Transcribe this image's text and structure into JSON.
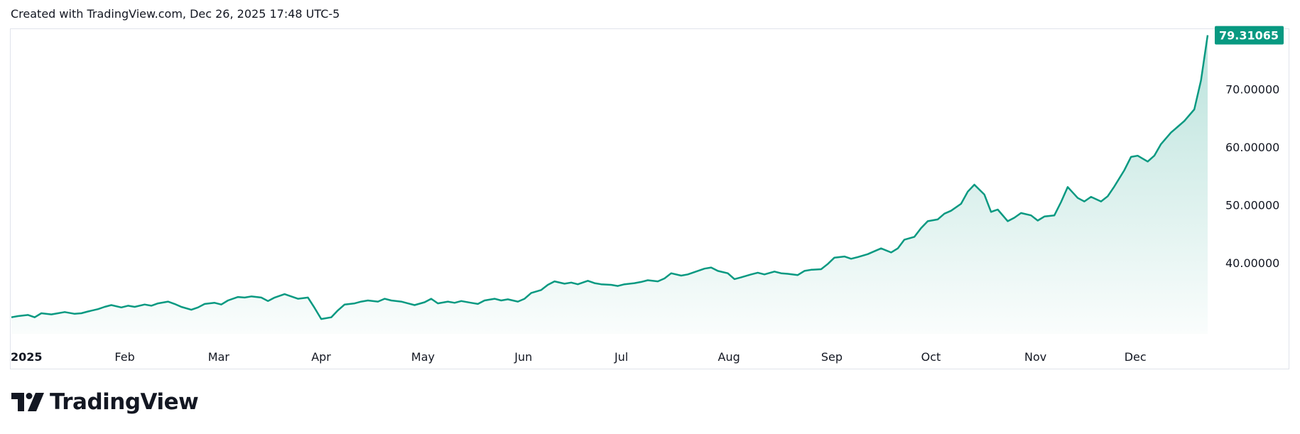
{
  "header": {
    "text": "Created with TradingView.com, Dec 26, 2025 17:48 UTC-5"
  },
  "footer": {
    "brand": "TradingView"
  },
  "colors": {
    "line": "#089981",
    "area_top": "#089981",
    "grid": "#e0e3eb",
    "badge_text": "#ffffff"
  },
  "chart_data": {
    "type": "area",
    "x_start": "2025-01-01",
    "x_end": "2025-12-26",
    "x_tick_labels": [
      "2025",
      "Feb",
      "Mar",
      "Apr",
      "May",
      "Jun",
      "Jul",
      "Aug",
      "Sep",
      "Oct",
      "Nov",
      "Dec"
    ],
    "y_tick_labels": [
      "40.00000",
      "50.00000",
      "60.00000",
      "70.00000"
    ],
    "ylim": [
      27,
      80
    ],
    "last_value_label": "79.31065",
    "grid": false,
    "points": [
      [
        "2025-01-01",
        30.6
      ],
      [
        "2025-01-03",
        30.8
      ],
      [
        "2025-01-06",
        31.0
      ],
      [
        "2025-01-08",
        30.6
      ],
      [
        "2025-01-10",
        31.3
      ],
      [
        "2025-01-13",
        31.1
      ],
      [
        "2025-01-15",
        31.3
      ],
      [
        "2025-01-17",
        31.5
      ],
      [
        "2025-01-20",
        31.2
      ],
      [
        "2025-01-22",
        31.3
      ],
      [
        "2025-01-24",
        31.6
      ],
      [
        "2025-01-27",
        32.0
      ],
      [
        "2025-01-29",
        32.4
      ],
      [
        "2025-01-31",
        32.7
      ],
      [
        "2025-02-03",
        32.3
      ],
      [
        "2025-02-05",
        32.6
      ],
      [
        "2025-02-07",
        32.4
      ],
      [
        "2025-02-10",
        32.8
      ],
      [
        "2025-02-12",
        32.6
      ],
      [
        "2025-02-14",
        33.0
      ],
      [
        "2025-02-17",
        33.3
      ],
      [
        "2025-02-19",
        32.9
      ],
      [
        "2025-02-21",
        32.4
      ],
      [
        "2025-02-24",
        31.9
      ],
      [
        "2025-02-26",
        32.3
      ],
      [
        "2025-02-28",
        32.9
      ],
      [
        "2025-03-03",
        33.1
      ],
      [
        "2025-03-05",
        32.8
      ],
      [
        "2025-03-07",
        33.5
      ],
      [
        "2025-03-10",
        34.1
      ],
      [
        "2025-03-12",
        34.0
      ],
      [
        "2025-03-14",
        34.2
      ],
      [
        "2025-03-17",
        34.0
      ],
      [
        "2025-03-19",
        33.4
      ],
      [
        "2025-03-21",
        34.0
      ],
      [
        "2025-03-24",
        34.6
      ],
      [
        "2025-03-26",
        34.2
      ],
      [
        "2025-03-28",
        33.8
      ],
      [
        "2025-03-31",
        34.0
      ],
      [
        "2025-04-02",
        32.2
      ],
      [
        "2025-04-04",
        30.3
      ],
      [
        "2025-04-07",
        30.6
      ],
      [
        "2025-04-09",
        31.8
      ],
      [
        "2025-04-11",
        32.8
      ],
      [
        "2025-04-14",
        33.0
      ],
      [
        "2025-04-16",
        33.3
      ],
      [
        "2025-04-18",
        33.5
      ],
      [
        "2025-04-21",
        33.3
      ],
      [
        "2025-04-23",
        33.8
      ],
      [
        "2025-04-25",
        33.5
      ],
      [
        "2025-04-28",
        33.3
      ],
      [
        "2025-04-30",
        33.0
      ],
      [
        "2025-05-02",
        32.7
      ],
      [
        "2025-05-05",
        33.2
      ],
      [
        "2025-05-07",
        33.8
      ],
      [
        "2025-05-09",
        33.0
      ],
      [
        "2025-05-12",
        33.3
      ],
      [
        "2025-05-14",
        33.1
      ],
      [
        "2025-05-16",
        33.4
      ],
      [
        "2025-05-19",
        33.1
      ],
      [
        "2025-05-21",
        32.9
      ],
      [
        "2025-05-23",
        33.5
      ],
      [
        "2025-05-26",
        33.8
      ],
      [
        "2025-05-28",
        33.5
      ],
      [
        "2025-05-30",
        33.7
      ],
      [
        "2025-06-02",
        33.3
      ],
      [
        "2025-06-04",
        33.8
      ],
      [
        "2025-06-06",
        34.8
      ],
      [
        "2025-06-09",
        35.3
      ],
      [
        "2025-06-11",
        36.2
      ],
      [
        "2025-06-13",
        36.8
      ],
      [
        "2025-06-16",
        36.4
      ],
      [
        "2025-06-18",
        36.6
      ],
      [
        "2025-06-20",
        36.3
      ],
      [
        "2025-06-23",
        36.9
      ],
      [
        "2025-06-25",
        36.5
      ],
      [
        "2025-06-27",
        36.3
      ],
      [
        "2025-06-30",
        36.2
      ],
      [
        "2025-07-02",
        36.0
      ],
      [
        "2025-07-04",
        36.3
      ],
      [
        "2025-07-07",
        36.5
      ],
      [
        "2025-07-09",
        36.7
      ],
      [
        "2025-07-11",
        37.0
      ],
      [
        "2025-07-14",
        36.8
      ],
      [
        "2025-07-16",
        37.3
      ],
      [
        "2025-07-18",
        38.2
      ],
      [
        "2025-07-21",
        37.8
      ],
      [
        "2025-07-23",
        38.0
      ],
      [
        "2025-07-25",
        38.4
      ],
      [
        "2025-07-28",
        39.0
      ],
      [
        "2025-07-30",
        39.2
      ],
      [
        "2025-08-01",
        38.6
      ],
      [
        "2025-08-04",
        38.2
      ],
      [
        "2025-08-06",
        37.2
      ],
      [
        "2025-08-08",
        37.5
      ],
      [
        "2025-08-11",
        38.0
      ],
      [
        "2025-08-13",
        38.3
      ],
      [
        "2025-08-15",
        38.0
      ],
      [
        "2025-08-18",
        38.5
      ],
      [
        "2025-08-20",
        38.2
      ],
      [
        "2025-08-22",
        38.1
      ],
      [
        "2025-08-25",
        37.9
      ],
      [
        "2025-08-27",
        38.6
      ],
      [
        "2025-08-29",
        38.8
      ],
      [
        "2025-09-01",
        38.9
      ],
      [
        "2025-09-03",
        39.8
      ],
      [
        "2025-09-05",
        40.9
      ],
      [
        "2025-09-08",
        41.1
      ],
      [
        "2025-09-10",
        40.7
      ],
      [
        "2025-09-12",
        41.0
      ],
      [
        "2025-09-15",
        41.5
      ],
      [
        "2025-09-17",
        42.0
      ],
      [
        "2025-09-19",
        42.5
      ],
      [
        "2025-09-22",
        41.8
      ],
      [
        "2025-09-24",
        42.5
      ],
      [
        "2025-09-26",
        44.0
      ],
      [
        "2025-09-29",
        44.5
      ],
      [
        "2025-10-01",
        46.0
      ],
      [
        "2025-10-03",
        47.2
      ],
      [
        "2025-10-06",
        47.5
      ],
      [
        "2025-10-08",
        48.5
      ],
      [
        "2025-10-10",
        49.0
      ],
      [
        "2025-10-13",
        50.2
      ],
      [
        "2025-10-15",
        52.3
      ],
      [
        "2025-10-17",
        53.5
      ],
      [
        "2025-10-20",
        51.8
      ],
      [
        "2025-10-22",
        48.8
      ],
      [
        "2025-10-24",
        49.2
      ],
      [
        "2025-10-27",
        47.2
      ],
      [
        "2025-10-29",
        47.8
      ],
      [
        "2025-10-31",
        48.6
      ],
      [
        "2025-11-03",
        48.2
      ],
      [
        "2025-11-05",
        47.3
      ],
      [
        "2025-11-07",
        48.0
      ],
      [
        "2025-11-10",
        48.2
      ],
      [
        "2025-11-12",
        50.5
      ],
      [
        "2025-11-14",
        53.1
      ],
      [
        "2025-11-17",
        51.2
      ],
      [
        "2025-11-19",
        50.6
      ],
      [
        "2025-11-21",
        51.4
      ],
      [
        "2025-11-24",
        50.6
      ],
      [
        "2025-11-26",
        51.5
      ],
      [
        "2025-11-28",
        53.2
      ],
      [
        "2025-12-01",
        56.0
      ],
      [
        "2025-12-03",
        58.3
      ],
      [
        "2025-12-05",
        58.5
      ],
      [
        "2025-12-08",
        57.5
      ],
      [
        "2025-12-10",
        58.5
      ],
      [
        "2025-12-12",
        60.5
      ],
      [
        "2025-12-15",
        62.5
      ],
      [
        "2025-12-17",
        63.5
      ],
      [
        "2025-12-19",
        64.5
      ],
      [
        "2025-12-22",
        66.5
      ],
      [
        "2025-12-24",
        71.5
      ],
      [
        "2025-12-26",
        79.31065
      ]
    ]
  }
}
